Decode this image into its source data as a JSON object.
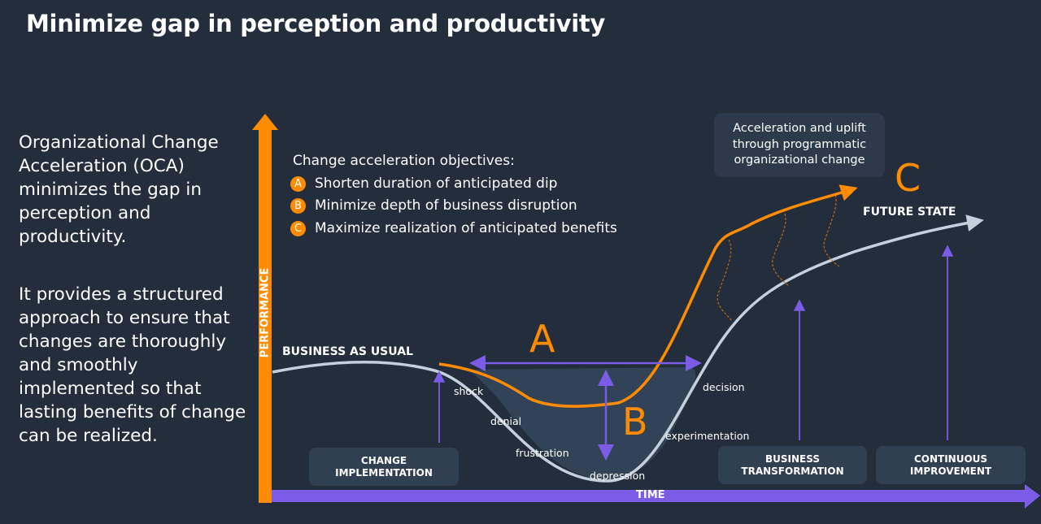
{
  "title": "Minimize gap in perception and productivity",
  "left_text": {
    "p1": "Organizational Change Acceleration (OCA) minimizes the gap in perception and productivity.",
    "p2": "It provides a structured approach to ensure that changes are thoroughly and smoothly implemented so that lasting benefits of change can be realized."
  },
  "diagram": {
    "y_axis_label": "PERFORMANCE",
    "x_axis_label": "TIME",
    "objectives_heading": "Change acceleration objectives:",
    "objectives": [
      {
        "badge": "A",
        "text": "Shorten duration of anticipated dip"
      },
      {
        "badge": "B",
        "text": "Minimize depth of business disruption"
      },
      {
        "badge": "C",
        "text": "Maximize realization of anticipated benefits"
      }
    ],
    "callout": "Acceleration and uplift through programmatic organizational change",
    "marker_a": "A",
    "marker_b": "B",
    "marker_c": "C",
    "business_as_usual": "BUSINESS AS USUAL",
    "future_state": "FUTURE STATE",
    "stages": [
      "shock",
      "denial",
      "frustration",
      "depression",
      "experimentation",
      "decision"
    ],
    "phases": [
      "CHANGE IMPLEMENTATION",
      "BUSINESS TRANSFORMATION",
      "CONTINUOUS IMPROVEMENT"
    ],
    "colors": {
      "background": "#232d3c",
      "orange": "#ff8c00",
      "purple": "#7b5ce6",
      "baseline_curve": "#c5d0dc",
      "box": "#303f52"
    }
  }
}
